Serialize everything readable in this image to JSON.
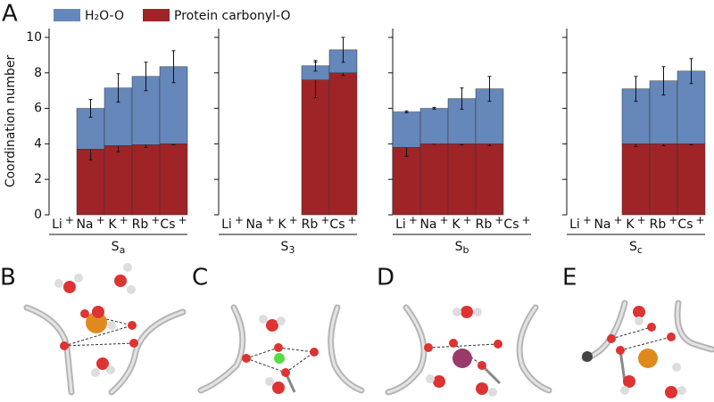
{
  "panel_labels": [
    "A",
    "B",
    "C",
    "D",
    "E"
  ],
  "chart_data": {
    "type": "bar",
    "stacked": true,
    "ylabel": "Coordination number",
    "ylim": [
      0,
      10.5
    ],
    "yticks": [
      0,
      2,
      4,
      6,
      8,
      10
    ],
    "categories": [
      "Li",
      "Na",
      "K",
      "Rb",
      "Cs"
    ],
    "category_superscript": "+",
    "series": [
      {
        "name": "H₂O-O",
        "color": "#6587ba"
      },
      {
        "name": "Protein carbonyl-O",
        "color": "#9e2428"
      }
    ],
    "panels": [
      {
        "group": "S",
        "group_sub": "a",
        "series": [
          {
            "values": [
              null,
              2.3,
              3.25,
              3.85,
              4.35
            ],
            "errors": [
              null,
              0.5,
              0.8,
              0.8,
              0.9
            ]
          },
          {
            "values": [
              null,
              3.7,
              3.9,
              3.95,
              4.0
            ],
            "errors": [
              null,
              0.6,
              0.35,
              0.15,
              0.05
            ]
          }
        ]
      },
      {
        "group": "S",
        "group_sub": "3",
        "series": [
          {
            "values": [
              null,
              null,
              null,
              0.8,
              1.3
            ],
            "errors": [
              null,
              null,
              null,
              0.3,
              0.7
            ]
          },
          {
            "values": [
              null,
              null,
              null,
              7.6,
              8.0
            ],
            "errors": [
              null,
              null,
              null,
              1.0,
              0.15
            ]
          }
        ]
      },
      {
        "group": "S",
        "group_sub": "b",
        "series": [
          {
            "values": [
              2.0,
              2.0,
              2.55,
              3.1,
              null
            ],
            "errors": [
              0.05,
              0.05,
              0.6,
              0.7,
              null
            ]
          },
          {
            "values": [
              3.8,
              4.0,
              4.0,
              4.0,
              null
            ],
            "errors": [
              0.5,
              0.02,
              0.05,
              0.1,
              null
            ]
          }
        ]
      },
      {
        "group": "S",
        "group_sub": "c",
        "series": [
          {
            "values": [
              null,
              null,
              3.1,
              3.55,
              4.1
            ],
            "errors": [
              null,
              null,
              0.7,
              0.8,
              0.7
            ]
          },
          {
            "values": [
              null,
              null,
              4.0,
              4.0,
              4.0
            ],
            "errors": [
              null,
              null,
              0.15,
              0.1,
              0.05
            ]
          }
        ]
      }
    ]
  }
}
